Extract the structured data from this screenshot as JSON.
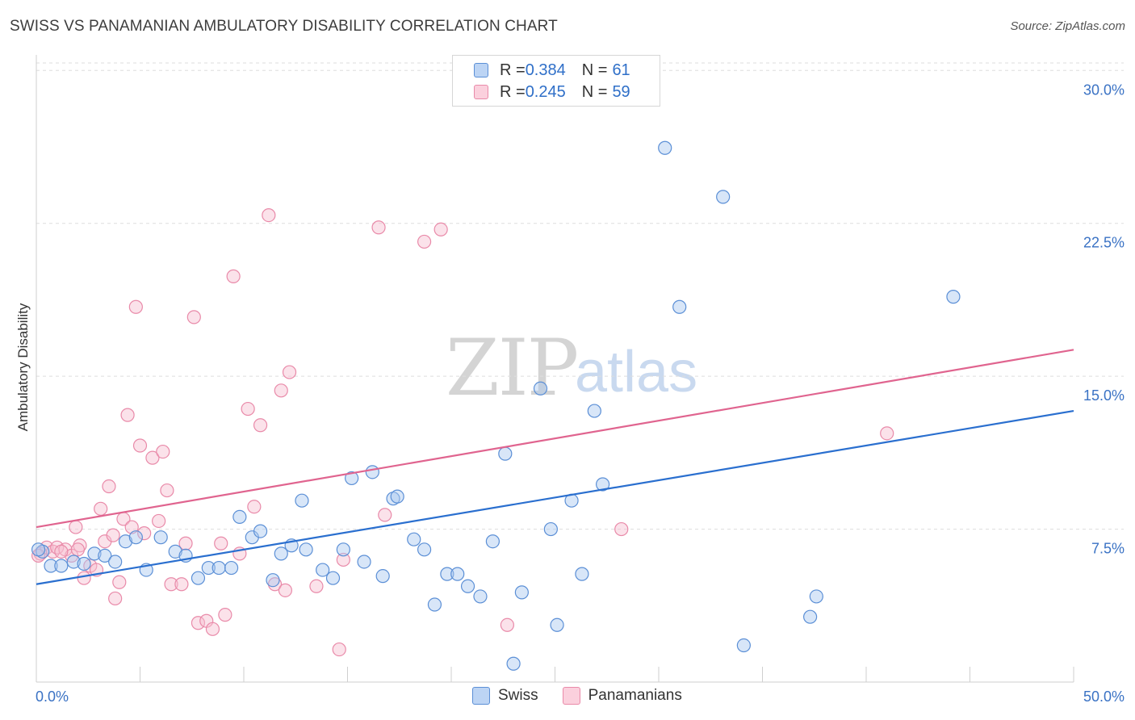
{
  "header": {
    "title": "SWISS VS PANAMANIAN AMBULATORY DISABILITY CORRELATION CHART",
    "source": "Source: ZipAtlas.com"
  },
  "watermark": {
    "zip": "ZIP",
    "atlas": "atlas"
  },
  "legend": {
    "rows": [
      {
        "r_label": "R = ",
        "r_value": "0.384",
        "n_label": "N = ",
        "n_value": "61"
      },
      {
        "r_label": "R = ",
        "r_value": "0.245",
        "n_label": "N = ",
        "n_value": "59"
      }
    ],
    "bottom": [
      "Swiss",
      "Panamanians"
    ]
  },
  "colors": {
    "swiss_fill": "#a9c8f0",
    "swiss_stroke": "#5b8fd6",
    "swiss_line": "#2a6fcf",
    "pan_fill": "#f7bfd0",
    "pan_stroke": "#e98aa9",
    "pan_line": "#e0648f",
    "grid": "#dddddd",
    "tick_text": "#3a72c4"
  },
  "chart_data": {
    "type": "scatter",
    "title": "SWISS VS PANAMANIAN AMBULATORY DISABILITY CORRELATION CHART",
    "xlabel": "",
    "ylabel": "Ambulatory Disability",
    "xlim": [
      0,
      50
    ],
    "ylim": [
      0,
      31
    ],
    "x_tick_labels": [
      "0.0%",
      "50.0%"
    ],
    "y_ticks": [
      7.5,
      15.0,
      22.5,
      30.0
    ],
    "y_tick_labels": [
      "7.5%",
      "15.0%",
      "22.5%",
      "30.0%"
    ],
    "grid": true,
    "legend_position": "top-center",
    "series": [
      {
        "name": "Swiss",
        "r": 0.384,
        "n": 61,
        "trend": {
          "x": [
            0,
            50
          ],
          "y": [
            4.8,
            13.3
          ]
        },
        "points": [
          [
            0.3,
            6.4
          ],
          [
            0.7,
            5.7
          ],
          [
            1.2,
            5.7
          ],
          [
            1.8,
            5.9
          ],
          [
            2.3,
            5.8
          ],
          [
            2.8,
            6.3
          ],
          [
            3.3,
            6.2
          ],
          [
            3.8,
            5.9
          ],
          [
            4.3,
            6.9
          ],
          [
            4.8,
            7.1
          ],
          [
            5.3,
            5.5
          ],
          [
            6.0,
            7.1
          ],
          [
            6.7,
            6.4
          ],
          [
            7.2,
            6.2
          ],
          [
            7.8,
            5.1
          ],
          [
            8.3,
            5.6
          ],
          [
            8.8,
            5.6
          ],
          [
            9.4,
            5.6
          ],
          [
            9.8,
            8.1
          ],
          [
            10.4,
            7.1
          ],
          [
            10.8,
            7.4
          ],
          [
            11.4,
            5.0
          ],
          [
            11.8,
            6.3
          ],
          [
            12.3,
            6.7
          ],
          [
            12.8,
            8.9
          ],
          [
            13.0,
            6.5
          ],
          [
            13.8,
            5.5
          ],
          [
            14.3,
            5.1
          ],
          [
            14.8,
            6.5
          ],
          [
            15.2,
            10.0
          ],
          [
            15.8,
            5.9
          ],
          [
            16.2,
            10.3
          ],
          [
            16.7,
            5.2
          ],
          [
            17.2,
            9.0
          ],
          [
            17.4,
            9.1
          ],
          [
            18.2,
            7.0
          ],
          [
            18.7,
            6.5
          ],
          [
            19.2,
            3.8
          ],
          [
            19.8,
            5.3
          ],
          [
            20.3,
            5.3
          ],
          [
            20.8,
            4.7
          ],
          [
            21.4,
            4.2
          ],
          [
            22.0,
            6.9
          ],
          [
            22.6,
            11.2
          ],
          [
            23.0,
            0.9
          ],
          [
            23.4,
            4.4
          ],
          [
            24.3,
            14.4
          ],
          [
            24.8,
            7.5
          ],
          [
            25.1,
            2.8
          ],
          [
            25.8,
            8.9
          ],
          [
            26.3,
            5.3
          ],
          [
            26.9,
            13.3
          ],
          [
            27.3,
            9.7
          ],
          [
            30.3,
            26.2
          ],
          [
            31.0,
            18.4
          ],
          [
            33.1,
            23.8
          ],
          [
            34.1,
            1.8
          ],
          [
            37.3,
            3.2
          ],
          [
            37.6,
            4.2
          ],
          [
            44.2,
            18.9
          ],
          [
            0.1,
            6.5
          ]
        ]
      },
      {
        "name": "Panamanians",
        "r": 0.245,
        "n": 59,
        "trend": {
          "x": [
            0,
            50
          ],
          "y": [
            7.6,
            16.3
          ]
        },
        "points": [
          [
            0.2,
            6.3
          ],
          [
            0.5,
            6.6
          ],
          [
            0.8,
            6.4
          ],
          [
            1.0,
            6.6
          ],
          [
            1.4,
            6.5
          ],
          [
            1.7,
            6.2
          ],
          [
            1.9,
            7.6
          ],
          [
            2.1,
            6.7
          ],
          [
            2.3,
            5.1
          ],
          [
            2.6,
            5.7
          ],
          [
            2.9,
            5.5
          ],
          [
            3.1,
            8.5
          ],
          [
            3.3,
            6.9
          ],
          [
            3.5,
            9.6
          ],
          [
            3.7,
            7.2
          ],
          [
            3.8,
            4.1
          ],
          [
            4.0,
            4.9
          ],
          [
            4.2,
            8.0
          ],
          [
            4.4,
            13.1
          ],
          [
            4.6,
            7.6
          ],
          [
            4.8,
            18.4
          ],
          [
            5.0,
            11.6
          ],
          [
            5.2,
            7.3
          ],
          [
            5.6,
            11.0
          ],
          [
            5.9,
            7.9
          ],
          [
            6.1,
            11.3
          ],
          [
            6.3,
            9.4
          ],
          [
            6.5,
            4.8
          ],
          [
            7.0,
            4.8
          ],
          [
            7.2,
            6.8
          ],
          [
            7.6,
            17.9
          ],
          [
            7.8,
            2.9
          ],
          [
            8.2,
            3.0
          ],
          [
            8.5,
            2.6
          ],
          [
            8.9,
            6.8
          ],
          [
            9.1,
            3.3
          ],
          [
            9.5,
            19.9
          ],
          [
            9.8,
            6.3
          ],
          [
            10.2,
            13.4
          ],
          [
            10.5,
            8.6
          ],
          [
            10.8,
            12.6
          ],
          [
            11.2,
            22.9
          ],
          [
            11.5,
            4.8
          ],
          [
            11.8,
            14.3
          ],
          [
            12.0,
            4.5
          ],
          [
            12.2,
            15.2
          ],
          [
            13.5,
            4.7
          ],
          [
            14.6,
            1.6
          ],
          [
            14.8,
            6.0
          ],
          [
            16.5,
            22.3
          ],
          [
            16.8,
            8.2
          ],
          [
            18.7,
            21.6
          ],
          [
            19.5,
            22.2
          ],
          [
            22.7,
            2.8
          ],
          [
            28.2,
            7.5
          ],
          [
            41.0,
            12.2
          ],
          [
            0.1,
            6.2
          ],
          [
            1.2,
            6.4
          ],
          [
            2.0,
            6.5
          ]
        ]
      }
    ]
  }
}
